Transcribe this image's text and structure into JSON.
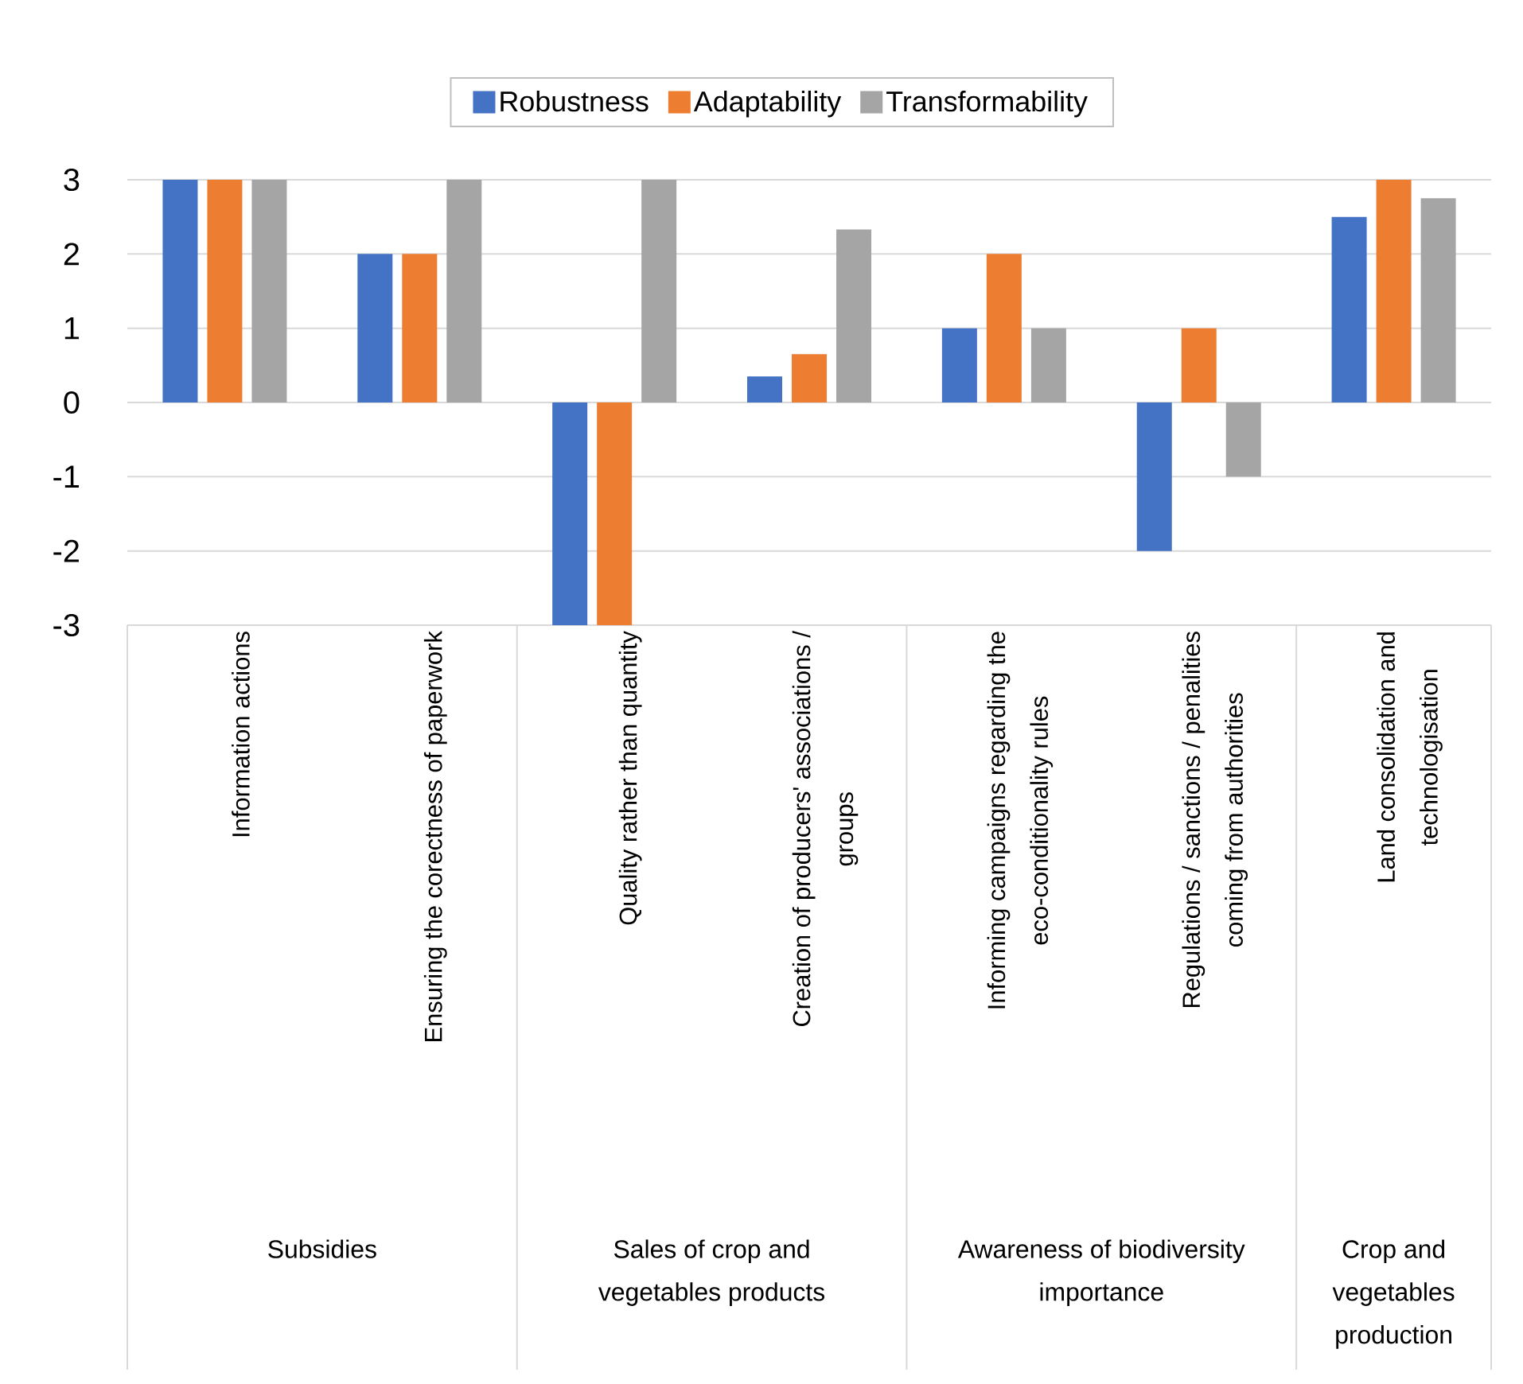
{
  "chart_data": {
    "type": "bar",
    "categories": [
      "Information actions",
      "Ensuring the corectness of paperwork",
      "Quality rather than quantity",
      "Creation of producers' associations / groups",
      "Informing campaigns regarding the eco-conditionality rules",
      "Regulations / sanctions / penalities coming from authorities",
      "Land consolidation and technologisation"
    ],
    "series": [
      {
        "name": "Robustness",
        "color": "#4472c4",
        "values": [
          3,
          2,
          -3,
          0.35,
          1,
          -2,
          2.5
        ]
      },
      {
        "name": "Adaptability",
        "color": "#ed7d31",
        "values": [
          3,
          2,
          -3,
          0.65,
          2,
          1,
          3
        ]
      },
      {
        "name": "Transformability",
        "color": "#a5a5a5",
        "values": [
          3,
          3,
          3,
          2.33,
          1,
          -1,
          2.75
        ]
      }
    ],
    "annotations": [
      "Subsidies",
      "Sales of crop and vegetables products",
      "Awareness of biodiversity importance",
      "Crop and vegetables production"
    ],
    "ylim": [
      -3,
      3
    ],
    "yticks": [
      -3,
      -2,
      -1,
      0,
      1,
      2,
      3
    ],
    "grid": "y",
    "legend": "top"
  }
}
